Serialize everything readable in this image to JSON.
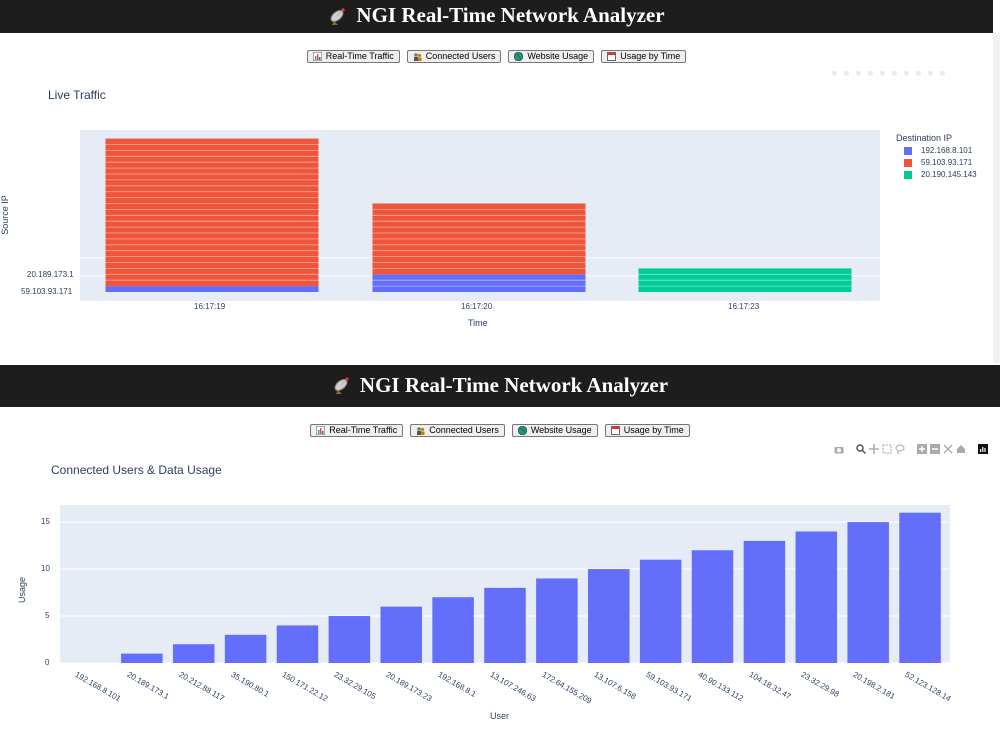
{
  "app": {
    "title": "NGI Real-Time Network Analyzer",
    "icon": "satellite-dish-icon"
  },
  "nav_buttons": [
    {
      "label": "Real-Time Traffic",
      "icon": "bar-chart-icon"
    },
    {
      "label": "Connected Users",
      "icon": "users-icon"
    },
    {
      "label": "Website Usage",
      "icon": "globe-icon"
    },
    {
      "label": "Usage by Time",
      "icon": "calendar-icon"
    }
  ],
  "live_traffic": {
    "title": "Live Traffic",
    "xlabel": "Time",
    "ylabel": "Source IP",
    "y_ticks": [
      "20.189.173.1",
      "59.103.93.171"
    ],
    "x_ticks": [
      "16:17:19",
      "16:17:20",
      "16:17:23"
    ],
    "legend_title": "Destination IP",
    "legend": [
      "192.168.8.101",
      "59.103.93.171",
      "20.190.145.143"
    ]
  },
  "connected_users": {
    "title": "Connected Users & Data Usage",
    "xlabel": "User",
    "ylabel": "Usage",
    "y_ticks": [
      "0",
      "5",
      "10",
      "15"
    ]
  },
  "colors": {
    "blue": "#636efa",
    "red": "#ef553b",
    "green": "#00cc96",
    "plot_bg": "#e5ecf6",
    "header_bg": "#1d1d1d"
  },
  "chart_data": [
    {
      "type": "bar",
      "title": "Live Traffic",
      "xlabel": "Time",
      "ylabel": "Source IP",
      "categories": [
        "16:17:19",
        "16:17:20",
        "16:17:23"
      ],
      "series": [
        {
          "name": "192.168.8.101",
          "values": [
            1,
            3,
            0
          ]
        },
        {
          "name": "59.103.93.171",
          "values": [
            25,
            12,
            0
          ]
        },
        {
          "name": "20.190.145.143",
          "values": [
            0,
            0,
            4
          ]
        }
      ]
    },
    {
      "type": "bar",
      "title": "Connected Users & Data Usage",
      "xlabel": "User",
      "ylabel": "Usage",
      "ylim": [
        0,
        16.5
      ],
      "categories": [
        "192.168.8.101",
        "20.189.173.1",
        "20.212.88.117",
        "35.190.80.1",
        "150.171.22.12",
        "23.32.29.105",
        "20.189.173.23",
        "192.168.8.1",
        "13.107.246.63",
        "172.64.155.209",
        "13.107.6.158",
        "59.103.93.171",
        "40.90.133.112",
        "104.18.32.47",
        "23.32.29.98",
        "20.198.2.181",
        "52.123.128.14"
      ],
      "values": [
        0,
        1,
        2,
        3,
        4,
        5,
        6,
        7,
        8,
        9,
        10,
        11,
        12,
        13,
        14,
        15,
        16
      ]
    }
  ]
}
